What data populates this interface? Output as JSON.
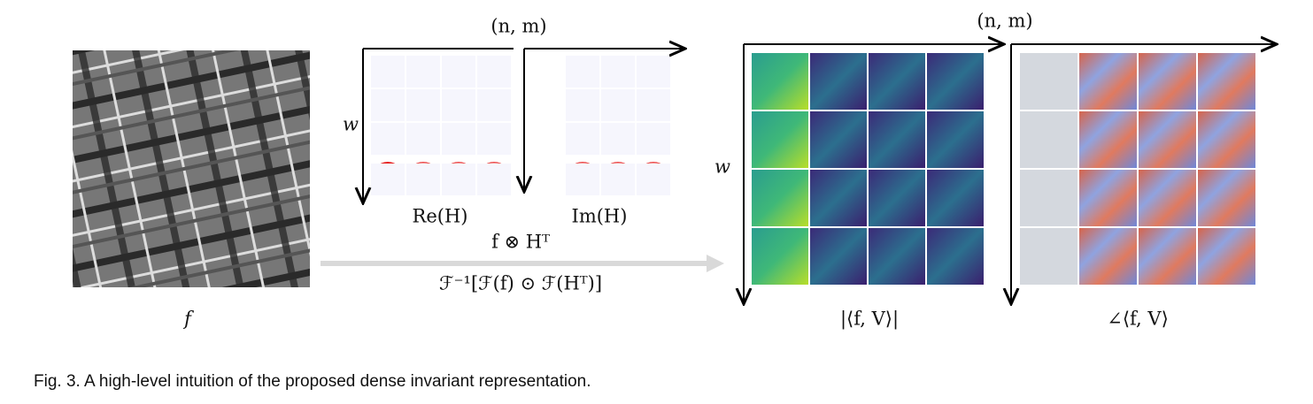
{
  "figure": {
    "input_label": "f",
    "filter_axis_x": "(n, m)",
    "filter_axis_y": "w",
    "real_label": "Re(H)",
    "imag_label": "Im(H)",
    "op_top": "f ⊗ Hᵀ",
    "op_bottom": "ℱ⁻¹[ℱ(f) ⊙ ℱ(Hᵀ)]",
    "output_axis_x": "(n, m)",
    "output_axis_y": "w",
    "magnitude_label": "|⟨f, V⟩|",
    "phase_label": "∠⟨f, V⟩"
  },
  "caption": "Fig. 3. A high-level intuition of the proposed dense invariant representation."
}
